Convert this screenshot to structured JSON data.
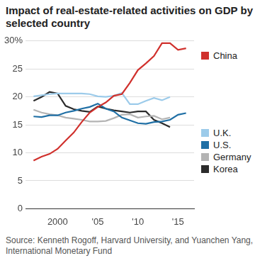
{
  "chart_data": {
    "type": "line",
    "title": "Impact of real-estate-related activities on GDP by selected country",
    "source": "Source: Kenneth Rogoff, Harvard University, and Yuanchen Yang, International Monetary Fund",
    "x": [
      1997,
      1998,
      1999,
      2000,
      2001,
      2002,
      2003,
      2004,
      2005,
      2006,
      2007,
      2008,
      2009,
      2010,
      2011,
      2012,
      2013,
      2014,
      2015,
      2016
    ],
    "series": [
      {
        "name": "China",
        "color": "#d0312d",
        "values": [
          8.6,
          9.3,
          9.8,
          10.7,
          12.2,
          13.6,
          15.5,
          17.2,
          18.2,
          19.0,
          20.2,
          20.5,
          22.5,
          24.8,
          26.0,
          27.3,
          29.6,
          29.6,
          28.4,
          28.7
        ]
      },
      {
        "name": "U.K.",
        "color": "#9ccbea",
        "values": [
          20.1,
          20.3,
          20.5,
          20.6,
          20.6,
          20.6,
          20.6,
          20.5,
          20.1,
          20.0,
          20.2,
          20.7,
          18.7,
          18.7,
          19.3,
          19.8,
          19.4,
          20.0,
          null,
          null
        ]
      },
      {
        "name": "U.S.",
        "color": "#1f6fa5",
        "values": [
          16.5,
          16.4,
          16.7,
          16.7,
          17.2,
          17.5,
          17.9,
          18.2,
          18.8,
          17.9,
          17.4,
          16.3,
          15.8,
          15.3,
          15.2,
          15.5,
          15.6,
          15.9,
          16.8,
          17.1
        ]
      },
      {
        "name": "Germany",
        "color": "#b4b4b4",
        "values": [
          17.7,
          17.2,
          16.9,
          16.7,
          16.3,
          16.1,
          15.9,
          15.6,
          15.6,
          15.7,
          16.2,
          16.8,
          16.9,
          16.3,
          16.5,
          16.6,
          16.0,
          16.3,
          null,
          null
        ]
      },
      {
        "name": "Korea",
        "color": "#2b2b2b",
        "values": [
          19.3,
          20.0,
          20.9,
          20.6,
          18.4,
          17.8,
          17.5,
          17.3,
          18.3,
          17.9,
          17.6,
          17.4,
          17.2,
          17.4,
          17.4,
          15.9,
          15.3,
          14.6,
          null,
          null
        ]
      }
    ],
    "xlim": [
      1996,
      2017
    ],
    "xticks": [
      2000,
      {
        "value": 2005,
        "label": "'05"
      },
      {
        "value": 2010,
        "label": "'10"
      },
      {
        "value": 2015,
        "label": "'15"
      }
    ],
    "ylim": [
      0,
      30
    ],
    "yticks": [
      0,
      5,
      10,
      15,
      20,
      25,
      {
        "value": 30,
        "label": "30%"
      }
    ],
    "grid": true,
    "legend": "right"
  }
}
